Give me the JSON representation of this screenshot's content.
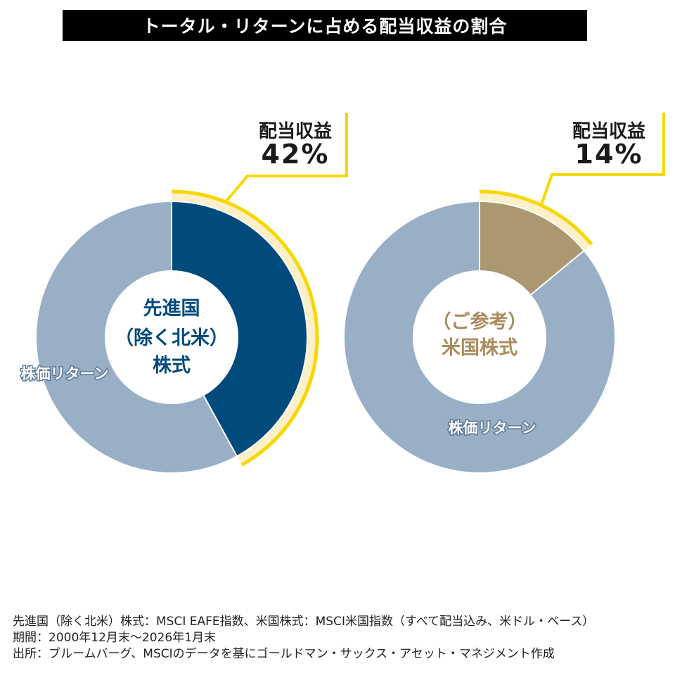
{
  "title": "トータル・リターンに占める配当収益の割合",
  "chart_data": [
    {
      "type": "pie",
      "variant": "donut",
      "name": "先進国（除く北米）株式",
      "center_label": [
        "先進国",
        "（除く北米）",
        "株式"
      ],
      "slices": [
        {
          "label": "配当収益",
          "value": 42,
          "display": "42%",
          "color": "#004a7c"
        },
        {
          "label": "株価リターン",
          "value": 58,
          "color": "#98afc6"
        }
      ],
      "center_color": "#004a7c"
    },
    {
      "type": "pie",
      "variant": "donut",
      "name": "（ご参考）米国株式",
      "center_label": [
        "（ご参考）",
        "米国株式"
      ],
      "slices": [
        {
          "label": "配当収益",
          "value": 14,
          "display": "14%",
          "color": "#ac9870"
        },
        {
          "label": "株価リターン",
          "value": 86,
          "color": "#98afc6"
        }
      ],
      "center_color": "#a88c5c"
    }
  ],
  "colors": {
    "highlight": "#f6d800",
    "highlight_glow": "#fbf0c8"
  },
  "notes": [
    "先進国（除く北米）株式：MSCI EAFE指数、米国株式：MSCI米国指数（すべて配当込み、米ドル・ベース）",
    "期間：2000年12月末〜2026年1月末",
    "出所：ブルームバーグ、MSCIのデータを基にゴールドマン・サックス・アセット・マネジメント作成"
  ]
}
